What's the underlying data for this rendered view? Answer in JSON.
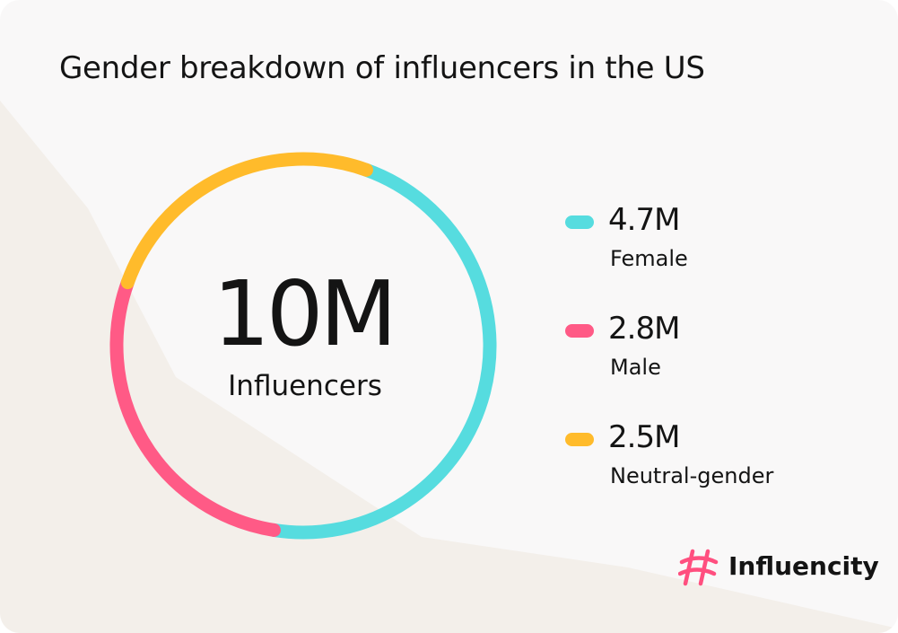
{
  "chart_data": {
    "type": "pie",
    "title": "Gender breakdown of influencers in the US",
    "total": {
      "value": "10M",
      "label": "Influencers"
    },
    "categories": [
      "Female",
      "Male",
      "Neutral-gender"
    ],
    "values": [
      4.7,
      2.8,
      2.5
    ],
    "value_labels": [
      "4.7M",
      "2.8M",
      "2.5M"
    ],
    "colors": [
      "#56dcdf",
      "#ff5a86",
      "#ffbb2b"
    ],
    "legend_position": "right"
  },
  "brand": {
    "name": "Influencity",
    "icon": "hashtag-icon",
    "color": "#ff4f7f"
  }
}
